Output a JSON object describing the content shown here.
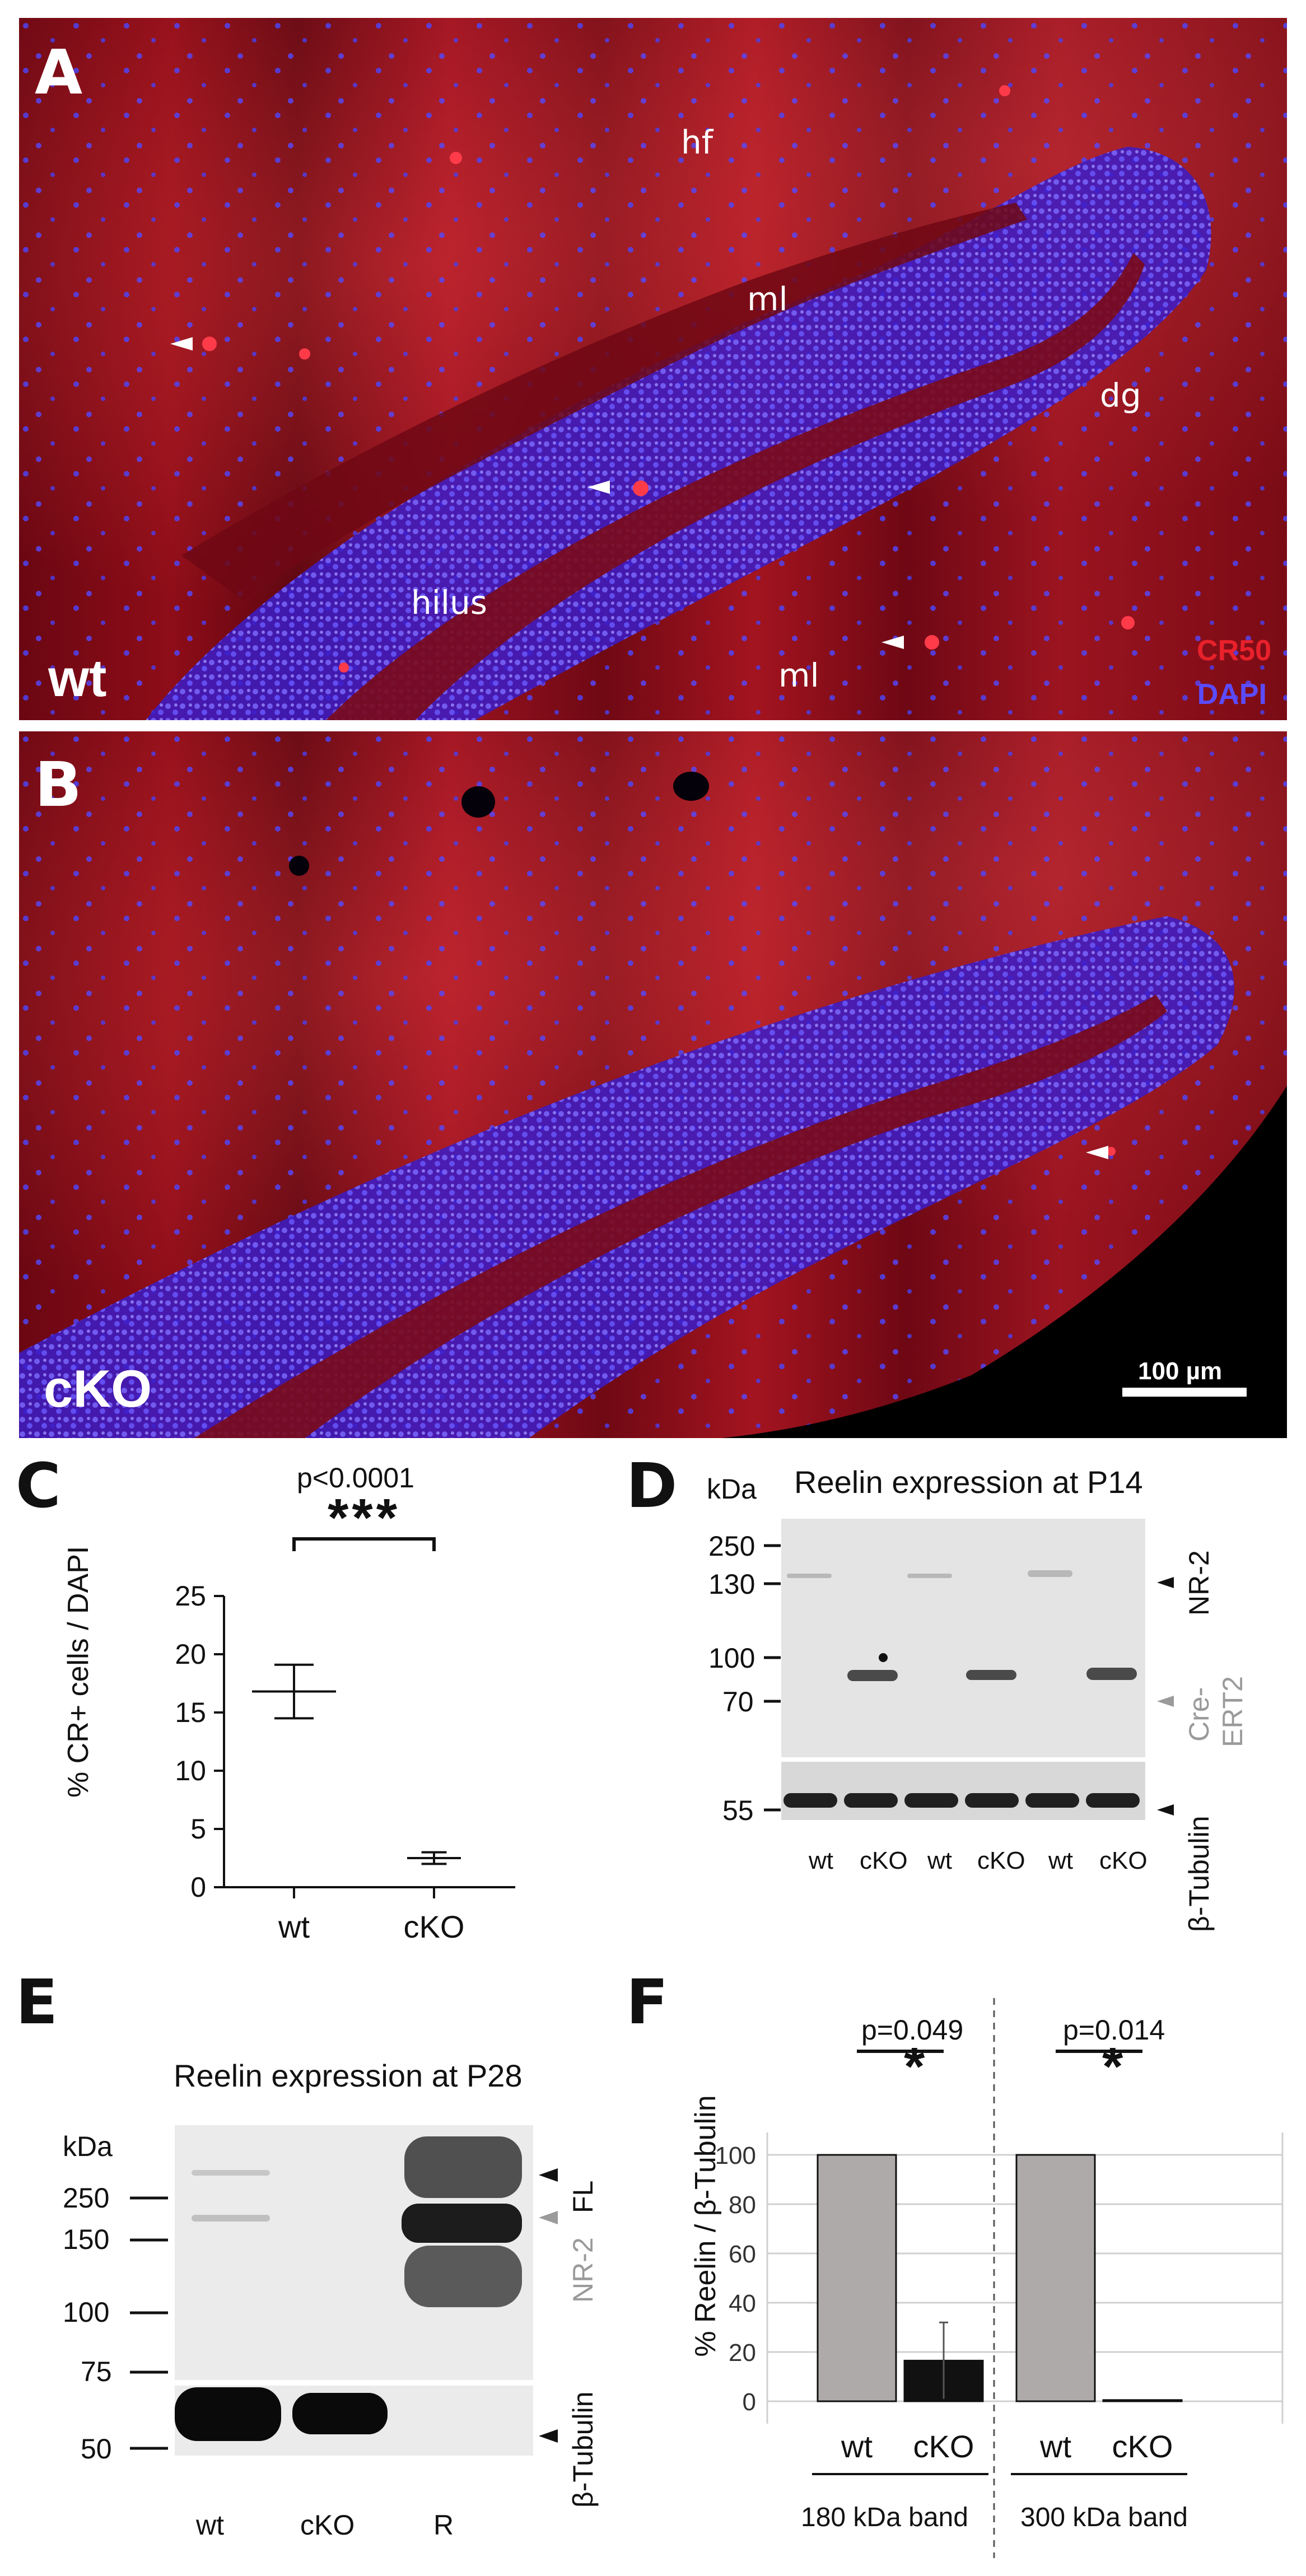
{
  "panels": {
    "A": {
      "letter": "A",
      "labels": {
        "hf": "hf",
        "ml_top": "ml",
        "dg": "dg",
        "hilus": "hilus",
        "ml_bottom": "ml"
      },
      "genotype": "wt",
      "legend": {
        "cr50": "CR50",
        "dapi": "DAPI"
      },
      "colors": {
        "cr50": "#e8212b",
        "dapi": "#5b4bff"
      }
    },
    "B": {
      "letter": "B",
      "genotype": "cKO",
      "scalebar": "100 µm"
    },
    "C": {
      "letter": "C",
      "pvalue": "p<0.0001",
      "stars": "***",
      "ylabel": "% CR+ cells / DAPI"
    },
    "D": {
      "letter": "D",
      "title": "Reelin expression at P14",
      "kda": "kDa",
      "markers": [
        "250",
        "130",
        "100",
        "70",
        "55"
      ],
      "lanes": [
        "wt",
        "cKO",
        "wt",
        "cKO",
        "wt",
        "cKO"
      ],
      "right_labels": {
        "nr2": "NR-2",
        "cre_line1": "Cre-",
        "cre_line2": "ERT2",
        "tubulin": "β-Tubulin"
      }
    },
    "E": {
      "letter": "E",
      "title": "Reelin expression at P28",
      "kda": "kDa",
      "markers": [
        "250",
        "150",
        "100",
        "75",
        "50"
      ],
      "lanes": [
        "wt",
        "cKO",
        "R"
      ],
      "right_labels": {
        "fl": "FL",
        "nr2": "NR-2",
        "tubulin": "β-Tubulin"
      }
    },
    "F": {
      "letter": "F",
      "p_left": "p=0.049",
      "p_right": "p=0.014",
      "star": "*",
      "ylabel": "% Reelin / β-Tubulin",
      "group_left": "180 kDa band",
      "group_right": "300 kDa band"
    }
  },
  "chart_data": [
    {
      "type": "scatter",
      "title": "",
      "ylabel": "% CR+ cells / DAPI",
      "categories": [
        "wt",
        "cKO"
      ],
      "mean": [
        16.8,
        2.5
      ],
      "error": [
        [
          14.5,
          19.1
        ],
        [
          2.0,
          3.0
        ]
      ],
      "ylim": [
        0,
        25
      ],
      "yticks": [
        0,
        5,
        10,
        15,
        20,
        25
      ]
    },
    {
      "type": "bar",
      "title": "",
      "ylabel": "% Reelin / β-Tubulin",
      "groups": [
        "180 kDa band",
        "300 kDa band"
      ],
      "categories": [
        "wt",
        "cKO"
      ],
      "values": [
        [
          100,
          16.5
        ],
        [
          100,
          0.5
        ]
      ],
      "error": [
        [
          0,
          15.5
        ],
        [
          0,
          0
        ]
      ],
      "ylim": [
        0,
        100
      ],
      "yticks": [
        0,
        20,
        40,
        60,
        80,
        100
      ],
      "colors": {
        "wt": "#aeaaaa",
        "cKO": "#111111"
      },
      "grid": true
    }
  ]
}
